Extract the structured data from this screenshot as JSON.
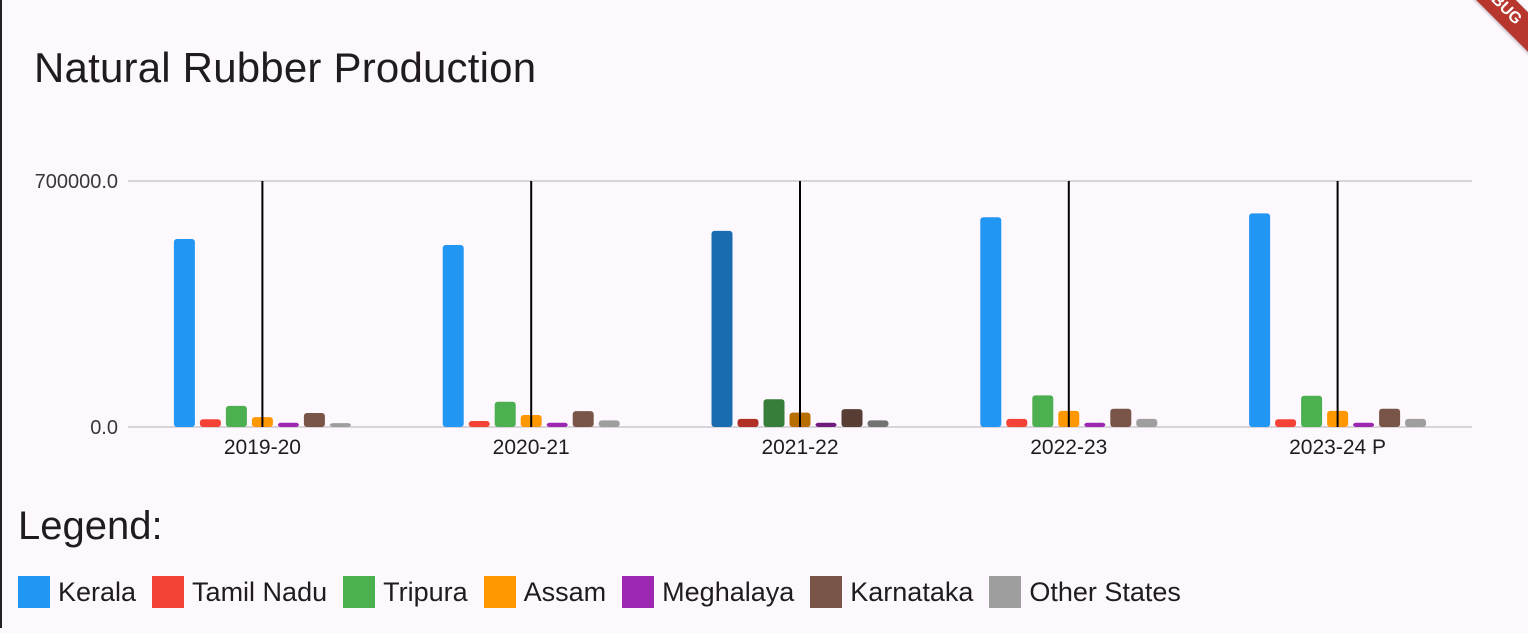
{
  "title": "Natural Rubber Production",
  "ribbon": "DEBUG",
  "legend_title": "Legend:",
  "colors": {
    "Kerala": "#2196f3",
    "Tamil Nadu": "#f44336",
    "Tripura": "#4caf50",
    "Assam": "#ff9800",
    "Meghalaya": "#9c27b0",
    "Karnataka": "#795548",
    "Other States": "#9e9e9e"
  },
  "chart_data": {
    "type": "bar",
    "title": "Natural Rubber Production",
    "xlabel": "",
    "ylabel": "",
    "ylim": [
      0,
      700000
    ],
    "yticks": [
      "0.0",
      "700000.0"
    ],
    "categories": [
      "2019-20",
      "2020-21",
      "2021-22",
      "2022-23",
      "2023-24 P"
    ],
    "highlighted_category": "2021-22",
    "grid": true,
    "legend_position": "bottom",
    "series": [
      {
        "name": "Kerala",
        "values": [
          535000,
          518000,
          558000,
          597000,
          608000
        ]
      },
      {
        "name": "Tamil Nadu",
        "values": [
          22000,
          17000,
          23000,
          23000,
          22000
        ]
      },
      {
        "name": "Tripura",
        "values": [
          60000,
          72000,
          79000,
          90000,
          89000
        ]
      },
      {
        "name": "Assam",
        "values": [
          28000,
          34000,
          41000,
          46000,
          46000
        ]
      },
      {
        "name": "Meghalaya",
        "values": [
          12000,
          12000,
          12000,
          12000,
          12000
        ]
      },
      {
        "name": "Karnataka",
        "values": [
          40000,
          45000,
          51000,
          52000,
          52000
        ]
      },
      {
        "name": "Other States",
        "values": [
          11000,
          19000,
          19000,
          23000,
          23000
        ]
      }
    ]
  }
}
